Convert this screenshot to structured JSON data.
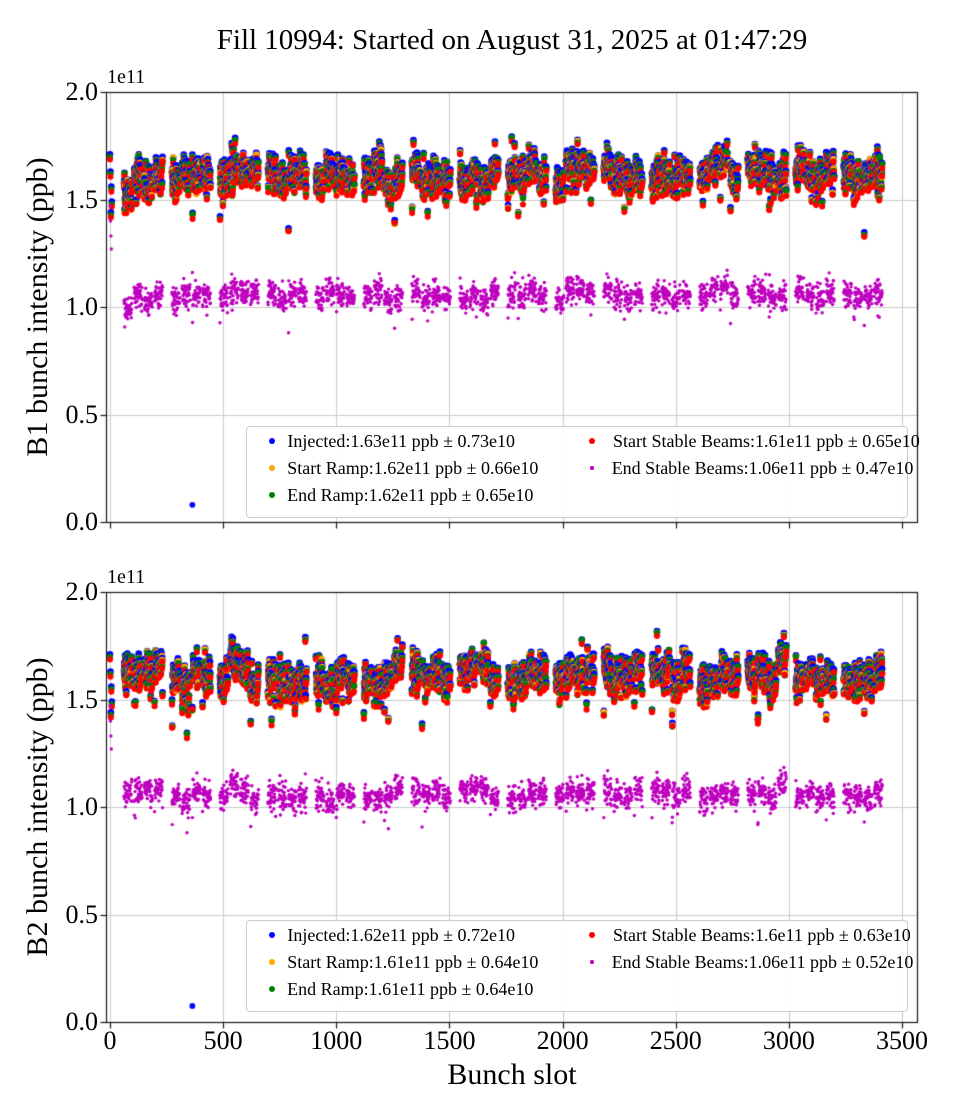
{
  "title": "Fill 10994: Started on August 31, 2025 at 01:47:29",
  "colors": {
    "background": "#ffffff",
    "grid": "#cccccc",
    "spine": "#1a1a1a",
    "tick": "#1a1a1a",
    "injected": "#0000ff",
    "start_ramp": "#ffa500",
    "end_ramp": "#008000",
    "start_stable_beams": "#ff0000",
    "end_stable_beams": "#bf00bf"
  },
  "chart_data": [
    {
      "type": "scatter",
      "beam": "B1",
      "ylabel": "B1 bunch intensity (ppb)",
      "xlabel": "Bunch slot",
      "y_offset_label": "1e11",
      "x_ticks": [
        0,
        500,
        1000,
        1500,
        2000,
        2500,
        3000,
        3500
      ],
      "y_tick_labels": [
        "0.0",
        "0.5",
        "1.0",
        "1.5",
        "2.0"
      ],
      "y_tick_values_e11": [
        0.0,
        0.5,
        1.0,
        1.5,
        2.0
      ],
      "xlim": [
        -18,
        3572
      ],
      "ylim_e11": [
        0.0,
        2.0
      ],
      "grid": true,
      "legend_position": "lower center",
      "legend_ncol": 2,
      "series": [
        {
          "name": "Injected",
          "label": "Injected:1.63e11 ppb ± 0.73e10",
          "color": "#0000ff",
          "mean_e11": 1.63,
          "std_e10": 0.73,
          "marker_px": 6.8
        },
        {
          "name": "Start Ramp",
          "label": "Start Ramp:1.62e11 ppb ± 0.66e10",
          "color": "#ffa500",
          "mean_e11": 1.62,
          "std_e10": 0.66,
          "marker_px": 6.5
        },
        {
          "name": "End Ramp",
          "label": "End Ramp:1.62e11 ppb ± 0.65e10",
          "color": "#008000",
          "mean_e11": 1.62,
          "std_e10": 0.65,
          "marker_px": 6.3
        },
        {
          "name": "Start Stable Beams",
          "label": "Start Stable Beams:1.61e11 ppb ± 0.65e10",
          "color": "#ff0000",
          "mean_e11": 1.61,
          "std_e10": 0.65,
          "marker_px": 6.1
        },
        {
          "name": "End Stable Beams",
          "label": "End Stable Beams:1.06e11 ppb ± 0.47e10",
          "color": "#bf00bf",
          "mean_e11": 1.06,
          "std_e10": 0.47,
          "marker_px": 3.4
        }
      ],
      "outlier": {
        "series": "Injected",
        "bunch_slot": 364,
        "value_e11": 0.08
      }
    },
    {
      "type": "scatter",
      "beam": "B2",
      "ylabel": "B2 bunch intensity (ppb)",
      "xlabel": "Bunch slot",
      "y_offset_label": "1e11",
      "x_ticks": [
        0,
        500,
        1000,
        1500,
        2000,
        2500,
        3000,
        3500
      ],
      "y_tick_labels": [
        "0.0",
        "0.5",
        "1.0",
        "1.5",
        "2.0"
      ],
      "y_tick_values_e11": [
        0.0,
        0.5,
        1.0,
        1.5,
        2.0
      ],
      "xlim": [
        -18,
        3572
      ],
      "ylim_e11": [
        0.0,
        2.0
      ],
      "grid": true,
      "legend_position": "lower center",
      "legend_ncol": 2,
      "series": [
        {
          "name": "Injected",
          "label": "Injected:1.62e11 ppb ± 0.72e10",
          "color": "#0000ff",
          "mean_e11": 1.62,
          "std_e10": 0.72,
          "marker_px": 6.8
        },
        {
          "name": "Start Ramp",
          "label": "Start Ramp:1.61e11 ppb ± 0.64e10",
          "color": "#ffa500",
          "mean_e11": 1.61,
          "std_e10": 0.64,
          "marker_px": 6.5
        },
        {
          "name": "End Ramp",
          "label": "End Ramp:1.61e11 ppb ± 0.64e10",
          "color": "#008000",
          "mean_e11": 1.61,
          "std_e10": 0.64,
          "marker_px": 6.3
        },
        {
          "name": "Start Stable Beams",
          "label": "Start Stable Beams:1.6e11 ppb ± 0.63e10",
          "color": "#ff0000",
          "mean_e11": 1.6,
          "std_e10": 0.63,
          "marker_px": 6.1
        },
        {
          "name": "End Stable Beams",
          "label": "End Stable Beams:1.06e11 ppb ± 0.52e10",
          "color": "#bf00bf",
          "mean_e11": 1.06,
          "std_e10": 0.52,
          "marker_px": 3.4
        }
      ],
      "outlier": {
        "series": "Injected",
        "bunch_slot": 364,
        "value_e11": 0.075
      }
    }
  ],
  "bunch_pattern": {
    "first_filled_slot": 0,
    "first_train_slot": 62,
    "bunches_per_train": 36,
    "trains_per_group": 4,
    "intra_train_gap_slots": 9,
    "group_gap_slots": 32,
    "last_slot": 3430
  }
}
